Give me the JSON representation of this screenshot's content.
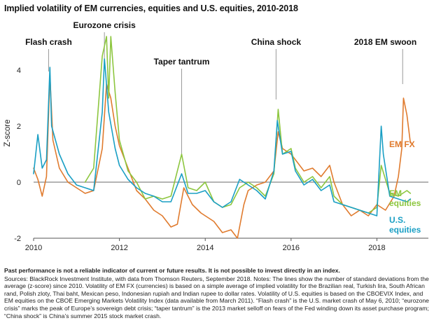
{
  "title": "Implied volatility of EM currencies, equities and U.S. equities, 2010-2018",
  "footnote": {
    "disclaimer": "Past performance is not a reliable indicator of current or future results. It is not possible to invest directly in an index.",
    "sources": "Sources: BlackRock Investment Institute, with data from Thomson Reuters, September 2018. Notes: The lines show the number of standard deviations from the average (z-score) since 2010. Volatility of EM FX (currencies) is based on a simple average of implied volatility for the Brazilian real, Turkish lira, South African rand, Polish zloty, Thai baht, Mexican peso, Indonesian rupiah and Indian rupee to dollar rates. Volatility of U.S. equities is based on the CBOEVIX Index, and EM equities on the CBOE Emerging Markets Volatility Index (data available from March 2011). “Flash crash” is the U.S. market crash of May 6, 2010; “eurozone crisis” marks the peak of Europe’s sovereign debt crisis; “taper tantrum” is the 2013 market selloff on fears of the Fed winding down its asset purchase program; “China shock” is China’s summer 2015 stock market crash."
  },
  "chart_data": {
    "type": "line",
    "ylabel": "Z-score",
    "xlabel": "",
    "xlim": [
      2010,
      2019.2
    ],
    "ylim": [
      -2,
      5.5
    ],
    "x_ticks": [
      2010,
      2012,
      2014,
      2016,
      2018
    ],
    "x_tick_labels": [
      "2010",
      "2012",
      "2014",
      "2016",
      "2018"
    ],
    "y_ticks": [
      -2,
      0,
      2,
      4
    ],
    "y_tick_labels": [
      "-2",
      "0",
      "2",
      "4"
    ],
    "zero_line": true,
    "grid": false,
    "annotations": [
      {
        "label": "Flash crash",
        "x": 2010.35
      },
      {
        "label": "Eurozone crisis",
        "x": 2011.65
      },
      {
        "label": "Taper tantrum",
        "x": 2013.45
      },
      {
        "label": "China shock",
        "x": 2015.65
      },
      {
        "label": "2018 EM swoon",
        "x": 2018.6
      }
    ],
    "series": [
      {
        "name": "EM FX",
        "label_lines": [
          "EM FX"
        ],
        "color": "#e07b2e",
        "x": [
          2010.0,
          2010.1,
          2010.2,
          2010.3,
          2010.38,
          2010.45,
          2010.6,
          2010.8,
          2011.0,
          2011.2,
          2011.4,
          2011.6,
          2011.7,
          2011.8,
          2011.9,
          2012.0,
          2012.2,
          2012.4,
          2012.6,
          2012.8,
          2013.0,
          2013.2,
          2013.35,
          2013.5,
          2013.7,
          2013.9,
          2014.0,
          2014.2,
          2014.4,
          2014.6,
          2014.75,
          2014.9,
          2015.0,
          2015.2,
          2015.4,
          2015.6,
          2015.7,
          2015.8,
          2016.0,
          2016.1,
          2016.3,
          2016.5,
          2016.7,
          2016.9,
          2017.0,
          2017.2,
          2017.4,
          2017.6,
          2017.8,
          2018.0,
          2018.2,
          2018.4,
          2018.5,
          2018.58,
          2018.62,
          2018.7,
          2018.78
        ],
        "values": [
          0.5,
          0.1,
          -0.5,
          0.2,
          3.8,
          1.5,
          0.5,
          0.0,
          -0.2,
          -0.4,
          -0.3,
          1.2,
          3.5,
          3.0,
          2.0,
          1.3,
          0.5,
          -0.3,
          -0.6,
          -1.0,
          -1.2,
          -1.6,
          -1.5,
          -0.2,
          -0.8,
          -1.1,
          -1.2,
          -1.4,
          -1.8,
          -1.7,
          -2.0,
          -0.8,
          -0.3,
          -0.1,
          0.0,
          0.4,
          1.8,
          1.2,
          1.0,
          0.8,
          0.4,
          0.5,
          0.2,
          0.6,
          0.0,
          -0.8,
          -1.2,
          -1.0,
          -1.2,
          -0.8,
          -1.0,
          -0.5,
          0.2,
          1.2,
          3.0,
          2.4,
          1.4
        ]
      },
      {
        "name": "EM equities",
        "label_lines": [
          "EM",
          "equities"
        ],
        "color": "#8dc63f",
        "x": [
          2011.2,
          2011.4,
          2011.6,
          2011.7,
          2011.75,
          2011.8,
          2011.9,
          2012.0,
          2012.2,
          2012.4,
          2012.6,
          2012.8,
          2013.0,
          2013.2,
          2013.45,
          2013.6,
          2013.8,
          2014.0,
          2014.2,
          2014.4,
          2014.6,
          2014.8,
          2015.0,
          2015.2,
          2015.4,
          2015.6,
          2015.7,
          2015.8,
          2016.0,
          2016.1,
          2016.3,
          2016.5,
          2016.7,
          2016.9,
          2017.0,
          2017.2,
          2017.4,
          2017.6,
          2017.8,
          2018.0,
          2018.1,
          2018.3,
          2018.5,
          2018.7,
          2018.78
        ],
        "values": [
          0.0,
          0.5,
          4.5,
          5.2,
          3.0,
          5.2,
          3.2,
          1.5,
          0.4,
          0.0,
          -0.6,
          -0.5,
          -0.6,
          -0.5,
          1.0,
          -0.2,
          -0.3,
          0.0,
          -0.7,
          -0.9,
          -0.8,
          -0.2,
          0.0,
          -0.2,
          -0.5,
          0.3,
          2.6,
          1.0,
          1.2,
          0.5,
          0.0,
          0.2,
          -0.2,
          0.2,
          -0.5,
          -0.8,
          -0.9,
          -1.0,
          -1.1,
          -0.9,
          0.6,
          -0.4,
          -0.5,
          -0.3,
          -0.4
        ]
      },
      {
        "name": "U.S. equities",
        "label_lines": [
          "U.S.",
          "equities"
        ],
        "color": "#1a9fc4",
        "x": [
          2010.0,
          2010.1,
          2010.2,
          2010.3,
          2010.38,
          2010.42,
          2010.6,
          2010.8,
          2011.0,
          2011.2,
          2011.4,
          2011.6,
          2011.65,
          2011.75,
          2011.9,
          2012.0,
          2012.2,
          2012.4,
          2012.6,
          2012.8,
          2013.0,
          2013.2,
          2013.45,
          2013.6,
          2013.8,
          2014.0,
          2014.2,
          2014.4,
          2014.6,
          2014.8,
          2015.0,
          2015.2,
          2015.4,
          2015.6,
          2015.68,
          2015.8,
          2016.0,
          2016.1,
          2016.3,
          2016.5,
          2016.7,
          2016.9,
          2017.0,
          2017.2,
          2017.4,
          2017.6,
          2017.8,
          2018.0,
          2018.1,
          2018.15,
          2018.3,
          2018.5,
          2018.7,
          2018.78
        ],
        "values": [
          0.3,
          1.7,
          0.5,
          0.8,
          4.1,
          2.0,
          1.0,
          0.3,
          -0.1,
          -0.2,
          -0.3,
          2.5,
          4.4,
          2.5,
          1.2,
          0.6,
          0.1,
          -0.2,
          -0.4,
          -0.5,
          -0.7,
          -0.7,
          0.3,
          -0.4,
          -0.4,
          -0.3,
          -0.7,
          -0.9,
          -0.7,
          0.1,
          -0.1,
          -0.3,
          -0.6,
          0.4,
          2.2,
          1.0,
          1.1,
          0.4,
          -0.1,
          0.1,
          -0.3,
          -0.1,
          -0.7,
          -0.8,
          -0.9,
          -1.0,
          -1.1,
          -1.2,
          2.0,
          1.0,
          -0.5,
          -0.6,
          -0.7,
          -0.6
        ]
      }
    ]
  }
}
